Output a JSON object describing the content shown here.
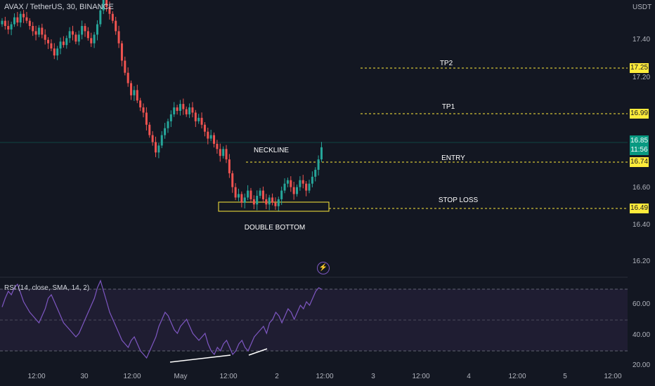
{
  "header": {
    "symbol_title": "AVAX / TetherUS, 30, BINANCE",
    "currency": "USDT"
  },
  "price_axis": {
    "ticks": [
      "17.40",
      "17.20",
      "16.60",
      "16.40",
      "16.20"
    ]
  },
  "levels": {
    "tp2": {
      "label": "TP2",
      "price": "17.25"
    },
    "tp1": {
      "label": "TP1",
      "price": "16.99"
    },
    "entry": {
      "label": "ENTRY",
      "price": "16.74"
    },
    "stop_loss": {
      "label": "STOP LOSS",
      "price": "16.49"
    }
  },
  "last_price": {
    "price": "16.85",
    "countdown": "11:56"
  },
  "annotations": {
    "neckline": "NECKLINE",
    "double_bottom": "DOUBLE BOTTOM"
  },
  "rsi": {
    "title": "RSI (14, close, SMA, 14, 2)",
    "ticks": [
      "60.00",
      "40.00",
      "20.00"
    ],
    "line_color": "#7e57c2"
  },
  "time_axis": {
    "ticks": [
      "12:00",
      "30",
      "12:00",
      "May",
      "12:00",
      "2",
      "12:00",
      "3",
      "12:00",
      "4",
      "12:00",
      "5",
      "12:00"
    ]
  },
  "colors": {
    "up": "#26a69a",
    "down": "#ef5350",
    "level": "#ffeb3b",
    "background": "#131722"
  },
  "chart_data": {
    "type": "candlestick",
    "price_range": [
      16.1,
      17.7
    ],
    "close_series": [
      17.58,
      17.55,
      17.53,
      17.56,
      17.6,
      17.57,
      17.62,
      17.6,
      17.58,
      17.55,
      17.52,
      17.5,
      17.54,
      17.5,
      17.47,
      17.45,
      17.42,
      17.38,
      17.42,
      17.46,
      17.44,
      17.48,
      17.52,
      17.5,
      17.46,
      17.5,
      17.55,
      17.52,
      17.48,
      17.45,
      17.5,
      17.56,
      17.64,
      17.7,
      17.66,
      17.62,
      17.58,
      17.52,
      17.45,
      17.35,
      17.28,
      17.22,
      17.15,
      17.18,
      17.12,
      17.08,
      17.05,
      16.98,
      16.92,
      16.88,
      16.82,
      16.86,
      16.92,
      16.96,
      17.0,
      17.04,
      17.08,
      17.06,
      17.1,
      17.07,
      17.04,
      17.08,
      17.05,
      17.0,
      17.02,
      16.98,
      16.94,
      16.9,
      16.92,
      16.87,
      16.84,
      16.8,
      16.84,
      16.78,
      16.7,
      16.62,
      16.56,
      16.58,
      16.53,
      16.56,
      16.6,
      16.55,
      16.52,
      16.57,
      16.6,
      16.55,
      16.52,
      16.56,
      16.53,
      16.51,
      16.55,
      16.6,
      16.64,
      16.66,
      16.62,
      16.58,
      16.62,
      16.66,
      16.64,
      16.6,
      16.64,
      16.68,
      16.72,
      16.78,
      16.85
    ],
    "rsi_values": [
      55,
      60,
      64,
      62,
      66,
      68,
      63,
      58,
      55,
      52,
      50,
      48,
      46,
      50,
      54,
      60,
      62,
      58,
      54,
      50,
      46,
      44,
      42,
      40,
      38,
      40,
      44,
      48,
      52,
      56,
      60,
      66,
      70,
      64,
      58,
      52,
      48,
      44,
      40,
      36,
      34,
      32,
      36,
      38,
      34,
      30,
      28,
      26,
      30,
      34,
      38,
      44,
      48,
      52,
      50,
      46,
      42,
      40,
      44,
      46,
      48,
      44,
      40,
      38,
      36,
      38,
      40,
      34,
      30,
      28,
      32,
      30,
      34,
      36,
      32,
      28,
      30,
      34,
      36,
      32,
      30,
      34,
      38,
      40,
      42,
      44,
      40,
      46,
      48,
      52,
      50,
      46,
      50,
      54,
      52,
      48,
      52,
      56,
      54,
      58,
      56,
      60,
      64,
      66,
      65
    ],
    "rsi_range": [
      20,
      72
    ]
  }
}
